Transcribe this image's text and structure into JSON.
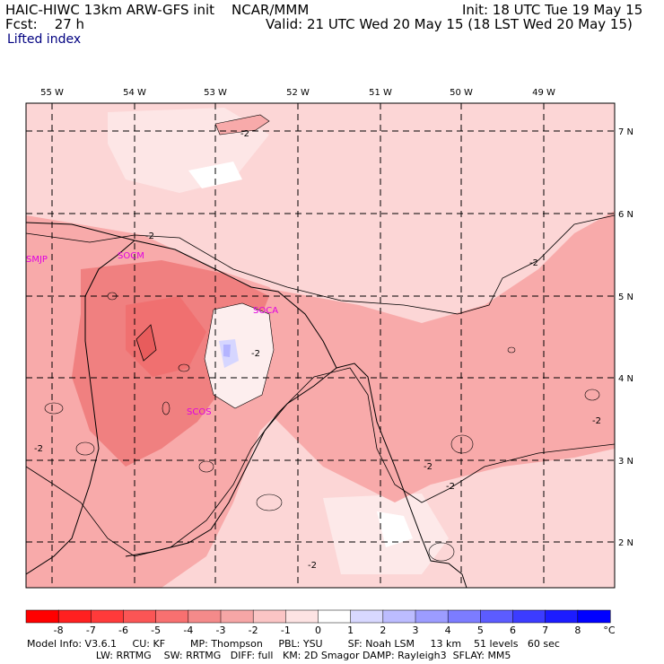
{
  "header": {
    "line1_left": "HAIC-HIWC 13km ARW-GFS init",
    "line1_mid": "NCAR/MMM",
    "line1_right": "Init: 18 UTC Tue 19 May 15",
    "line2_left": "Fcst:    27 h",
    "line2_right": "Valid: 21 UTC Wed 20 May 15 (18 LST Wed 20 May 15)",
    "field_name": "Lifted index"
  },
  "map": {
    "lon_labels": [
      "55 W",
      "54 W",
      "53 W",
      "52 W",
      "51 W",
      "50 W",
      "49 W"
    ],
    "lat_labels": [
      "7 N",
      "6 N",
      "5 N",
      "4 N",
      "3 N",
      "2 N"
    ],
    "stations": [
      {
        "id": "SMJP"
      },
      {
        "id": "SOCM"
      },
      {
        "id": "SOCA"
      },
      {
        "id": "SCOS"
      }
    ],
    "contour_label": "-2",
    "colors": {
      "bg_light": "#fcd6d6",
      "bg_mid": "#f8aaaa",
      "bg_dark": "#f08080",
      "bg_darker": "#e85c5c",
      "bg_white": "#fdeeee",
      "blue_light": "#d6d6ff",
      "blue": "#b4b4ff",
      "station": "#e000e0"
    }
  },
  "colorbar": {
    "ticks": [
      "-8",
      "-7",
      "-6",
      "-5",
      "-4",
      "-3",
      "-2",
      "-1",
      "0",
      "1",
      "2",
      "3",
      "4",
      "5",
      "6",
      "7",
      "8"
    ],
    "unit": "°C",
    "colors": [
      "#ff0000",
      "#ff2020",
      "#ff3a3a",
      "#fb5555",
      "#f87070",
      "#f48a8a",
      "#f6a6a6",
      "#fbc5c5",
      "#fde3e3",
      "#ffffff",
      "#d8d8ff",
      "#bcbcff",
      "#9c9cff",
      "#7c7cff",
      "#5c5cff",
      "#3c3cff",
      "#1c1cff",
      "#0000ff"
    ]
  },
  "footer": {
    "line1": "Model Info: V3.6.1     CU: KF        MP: Thompson     PBL: YSU        SF: Noah LSM     13 km    51 levels   60 sec",
    "line2": "                      LW: RRTMG    SW: RRTMG   DIFF: full   KM: 2D Smagor DAMP: Rayleigh3  SFLAY: MM5"
  }
}
